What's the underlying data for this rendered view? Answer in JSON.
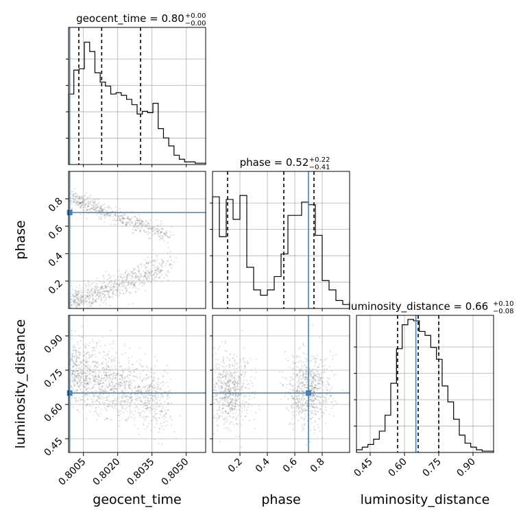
{
  "chart_data": {
    "type": "corner",
    "colors": {
      "truth": "#4682b4",
      "hist": "#000000",
      "grid": "#b0b0b0",
      "sample": "#555555"
    },
    "parameters": [
      {
        "name": "geocent_time",
        "title": {
          "main": "geocent_time = 0.80",
          "sup": "+0.00",
          "sub": "−0.00"
        },
        "xlabel": "geocent_time",
        "range": [
          0.79985,
          0.80585
        ],
        "ticks": [
          0.8005,
          0.802,
          0.8035,
          0.805
        ],
        "tick_labels": [
          "0.8005",
          "0.8020",
          "0.8035",
          "0.8050"
        ],
        "truth": 0.7999,
        "quantiles": [
          0.8003,
          0.8013,
          0.803
        ],
        "hist_values": [
          0.53,
          0.71,
          0.72,
          0.92,
          0.85,
          0.69,
          0.62,
          0.59,
          0.53,
          0.54,
          0.52,
          0.49,
          0.45,
          0.38,
          0.4,
          0.39,
          0.46,
          0.27,
          0.2,
          0.14,
          0.07,
          0.04,
          0.02,
          0.02,
          0.01,
          0.01
        ]
      },
      {
        "name": "phase",
        "title": {
          "main": "phase = 0.52",
          "sup": "+0.22",
          "sub": "−0.41"
        },
        "ylabel": "phase",
        "xlabel": "phase",
        "range": [
          0.0,
          1.0
        ],
        "ticks": [
          0.2,
          0.4,
          0.6,
          0.8
        ],
        "tick_labels": [
          "0.2",
          "0.4",
          "0.6",
          "0.8"
        ],
        "truth": 0.7,
        "quantiles": [
          0.11,
          0.52,
          0.74
        ],
        "hist_values": [
          0.84,
          0.54,
          0.82,
          0.67,
          0.85,
          0.31,
          0.14,
          0.1,
          0.14,
          0.24,
          0.41,
          0.7,
          0.7,
          0.8,
          0.78,
          0.55,
          0.21,
          0.14,
          0.06,
          0.03
        ]
      },
      {
        "name": "luminosity_distance",
        "title": {
          "main": "luminosity_distance = 0.66",
          "sup": "+0.10",
          "sub": "−0.08"
        },
        "ylabel": "luminosity_distance",
        "xlabel": "luminosity_distance",
        "range": [
          0.39,
          0.99
        ],
        "ticks": [
          0.45,
          0.6,
          0.75,
          0.9
        ],
        "tick_labels": [
          "0.45",
          "0.60",
          "0.75",
          "0.90"
        ],
        "truth": 0.65,
        "quantiles": [
          0.57,
          0.66,
          0.75
        ],
        "hist_values": [
          0.02,
          0.04,
          0.06,
          0.1,
          0.16,
          0.28,
          0.52,
          0.78,
          0.96,
          1.0,
          0.99,
          0.91,
          0.88,
          0.79,
          0.7,
          0.5,
          0.38,
          0.25,
          0.13,
          0.07,
          0.04,
          0.02,
          0.01,
          0.01
        ]
      }
    ],
    "grid": true
  }
}
